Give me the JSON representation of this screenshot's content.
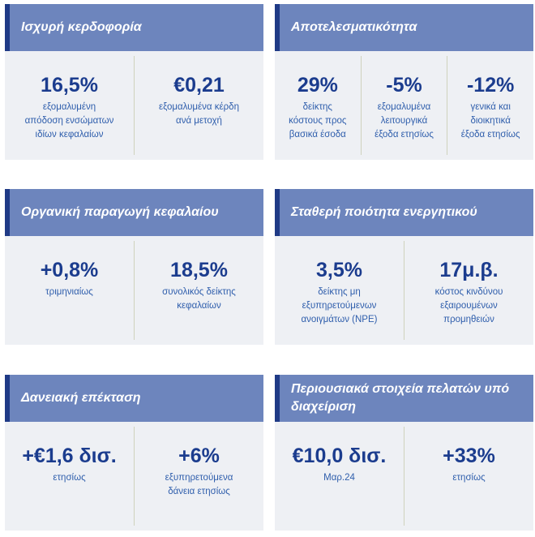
{
  "cards": [
    {
      "title": "Ισχυρή κερδοφορία",
      "metrics": [
        {
          "value": "16,5%",
          "label": "εξομαλυμένη απόδοση ενσώματων ιδίων κεφαλαίων"
        },
        {
          "value": "€0,21",
          "label": "εξομαλυμένα κέρδη ανά μετοχή"
        }
      ]
    },
    {
      "title": "Αποτελεσματικότητα",
      "metrics": [
        {
          "value": "29%",
          "label": "δείκτης κόστους προς βασικά έσοδα"
        },
        {
          "value": "-5%",
          "label": "εξομαλυμένα λειτουργικά έξοδα ετησίως"
        },
        {
          "value": "-12%",
          "label": "γενικά και διοικητικά έξοδα ετησίως"
        }
      ]
    },
    {
      "title": "Οργανική παραγωγή κεφαλαίου",
      "metrics": [
        {
          "value": "+0,8%",
          "label": "τριμηνιαίως"
        },
        {
          "value": "18,5%",
          "label": "συνολικός δείκτης κεφαλαίων"
        }
      ]
    },
    {
      "title": "Σταθερή ποιότητα ενεργητικού",
      "metrics": [
        {
          "value": "3,5%",
          "label": "δείκτης μη εξυπηρετούμενων ανοιγμάτων (NPE)"
        },
        {
          "value": "17μ.β.",
          "label": "κόστος κινδύνου εξαιρουμένων προμηθειών"
        }
      ]
    },
    {
      "title": "Δανειακή επέκταση",
      "metrics": [
        {
          "value": "+€1,6 δισ.",
          "label": "ετησίως"
        },
        {
          "value": "+6%",
          "label": "εξυπηρετούμενα δάνεια ετησίως"
        }
      ]
    },
    {
      "title": "Περιουσιακά στοιχεία πελατών υπό διαχείριση",
      "metrics": [
        {
          "value": "€10,0 δισ.",
          "label": "Μαρ.24"
        },
        {
          "value": "+33%",
          "label": "ετησίως"
        }
      ]
    }
  ]
}
